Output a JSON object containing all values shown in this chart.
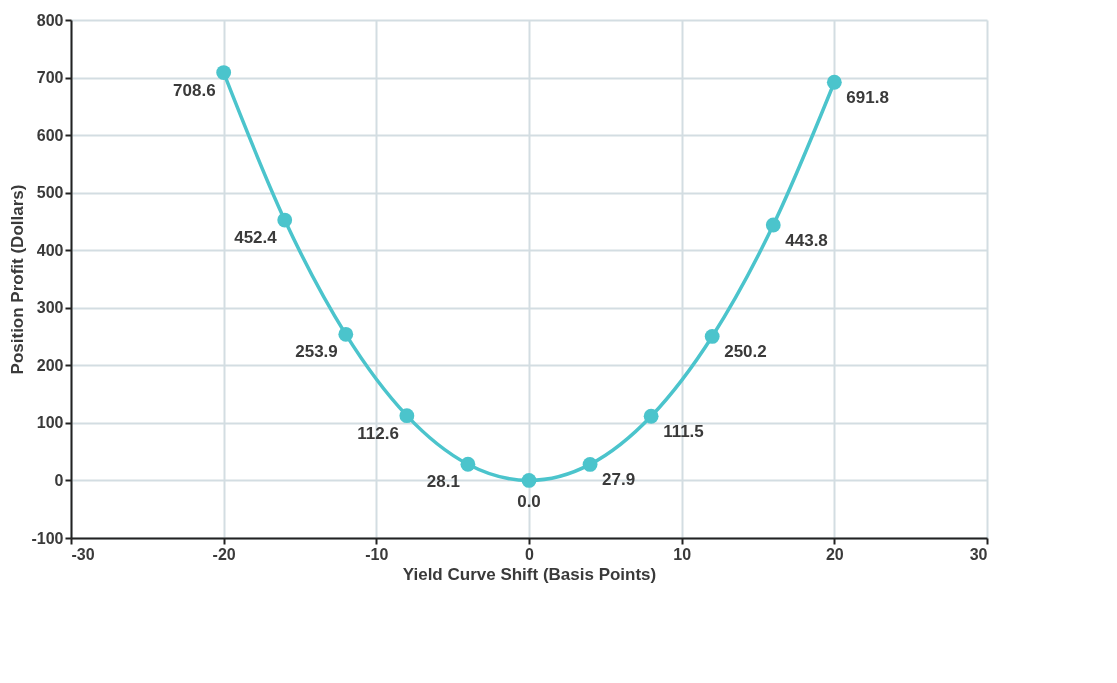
{
  "chart_data": {
    "type": "line",
    "xlabel": "Yield Curve Shift (Basis Points)",
    "ylabel": "Position Profit (Dollars)",
    "x": [
      -20,
      -16,
      -12,
      -8,
      -4,
      0,
      4,
      8,
      12,
      16,
      20
    ],
    "series": [
      {
        "color": "#4bc4cc",
        "values": [
          708.6,
          452.4,
          253.9,
          112.6,
          28.1,
          0.0,
          27.9,
          111.5,
          250.2,
          443.8,
          691.8
        ],
        "value_labels": [
          "708.6",
          "452.4",
          "253.9",
          "112.6",
          "28.1",
          "0.0",
          "27.9",
          "111.5",
          "250.2",
          "443.8",
          "691.8"
        ]
      }
    ],
    "xlim": [
      -30,
      30
    ],
    "xticks": [
      -30,
      -20,
      -10,
      0,
      10,
      20,
      30
    ],
    "ylim": [
      -100,
      800
    ],
    "yticks": [
      -100,
      0,
      100,
      200,
      300,
      400,
      500,
      600,
      700,
      800
    ],
    "grid": true,
    "marker": "circle",
    "line_style": "solid"
  }
}
